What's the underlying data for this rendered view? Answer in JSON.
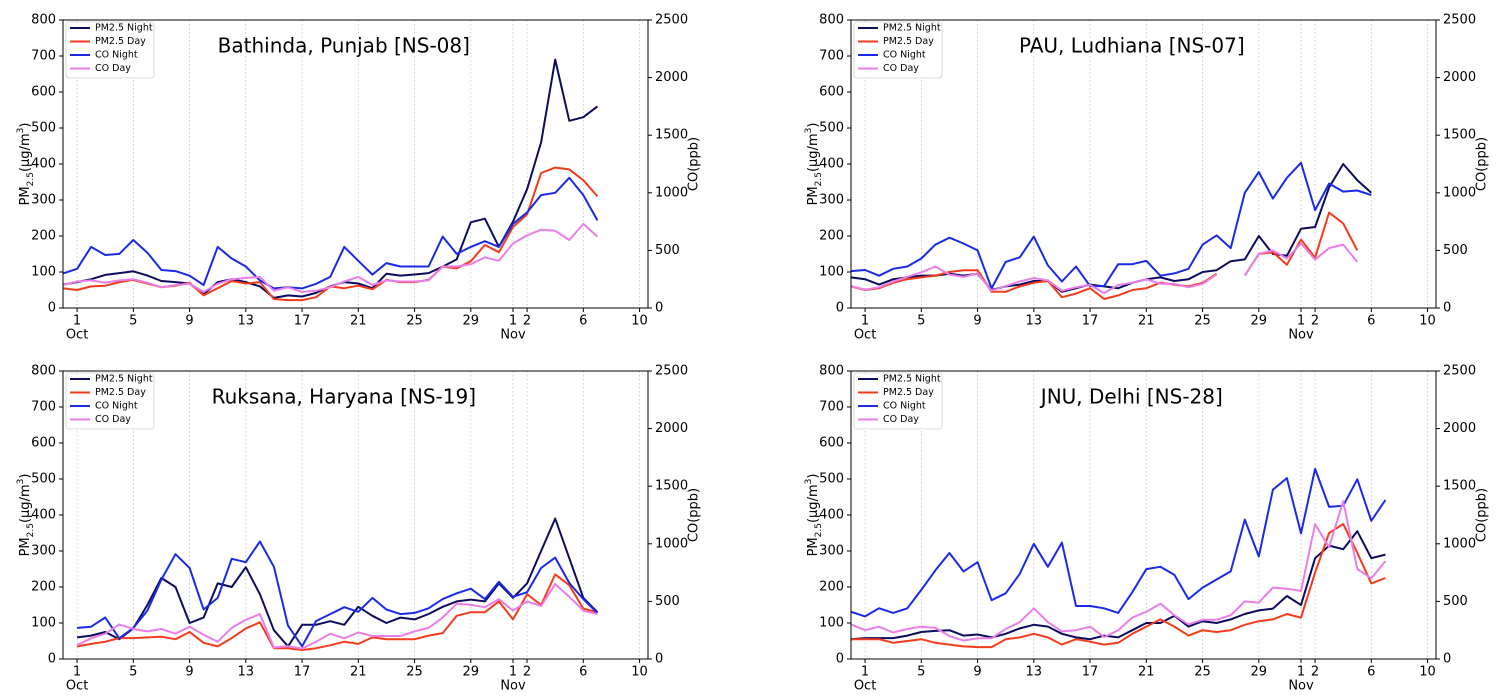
{
  "chart_data": [
    {
      "type": "line",
      "title": "Bathinda, Punjab [NS-08]",
      "ylabel": [
        "PM",
        "2.5",
        "(μg/m",
        "3",
        ")"
      ],
      "y2label": "CO(ppb)",
      "x": [
        0,
        1,
        2,
        3,
        4,
        5,
        6,
        7,
        8,
        9,
        10,
        11,
        12,
        13,
        14,
        15,
        16,
        17,
        18,
        19,
        20,
        21,
        22,
        23,
        24,
        25,
        26,
        27,
        28,
        29,
        30,
        31,
        32,
        33,
        34,
        35,
        36,
        37,
        38
      ],
      "xlim": [
        0,
        41.6
      ],
      "xticks": [
        1,
        5,
        9,
        13,
        17,
        21,
        25,
        29,
        {
          "value": 32,
          "label": "1"
        },
        {
          "value": 33,
          "label": "2"
        },
        {
          "value": 37,
          "label": "6"
        },
        {
          "value": 41,
          "label": "10"
        }
      ],
      "month_labels": [
        {
          "value": 1,
          "label": "Oct"
        },
        {
          "value": 32,
          "label": "Nov"
        }
      ],
      "ylim": [
        0,
        800
      ],
      "yticks": [
        0,
        100,
        200,
        300,
        400,
        500,
        600,
        700,
        800
      ],
      "y2lim": [
        0,
        2500
      ],
      "y2ticks": [
        0,
        500,
        1000,
        1500,
        2000,
        2500
      ],
      "grid": true,
      "legend": "upper left",
      "series": [
        {
          "name": "PM2.5 Night",
          "color": "#0c0c5e",
          "values": [
            65,
            72,
            80,
            92,
            97,
            102,
            90,
            75,
            72,
            68,
            38,
            72,
            80,
            72,
            60,
            28,
            35,
            32,
            42,
            60,
            72,
            68,
            55,
            95,
            90,
            93,
            97,
            115,
            135,
            238,
            248,
            170,
            240,
            330,
            460,
            690,
            520,
            530,
            560
          ]
        },
        {
          "name": "PM2.5 Day",
          "color": "#f23c1c",
          "values": [
            55,
            50,
            60,
            62,
            72,
            78,
            68,
            58,
            62,
            70,
            35,
            55,
            75,
            68,
            72,
            25,
            22,
            22,
            30,
            60,
            55,
            62,
            52,
            78,
            72,
            72,
            78,
            115,
            110,
            130,
            175,
            155,
            225,
            260,
            375,
            390,
            385,
            355,
            310
          ]
        },
        {
          "name": "CO Night",
          "color": "#1a2ae8",
          "axis": "y2",
          "values": [
            300,
            340,
            530,
            460,
            470,
            590,
            480,
            330,
            320,
            280,
            200,
            530,
            430,
            360,
            240,
            170,
            180,
            170,
            210,
            270,
            530,
            410,
            290,
            390,
            360,
            360,
            360,
            620,
            470,
            530,
            580,
            530,
            730,
            830,
            980,
            1000,
            1130,
            980,
            760
          ]
        },
        {
          "name": "CO Day",
          "color": "#ea7ee8",
          "axis": "y2",
          "values": [
            200,
            230,
            240,
            220,
            240,
            250,
            220,
            180,
            200,
            210,
            140,
            210,
            250,
            260,
            270,
            150,
            180,
            140,
            150,
            180,
            230,
            270,
            200,
            240,
            230,
            230,
            240,
            360,
            360,
            380,
            440,
            410,
            560,
            630,
            680,
            670,
            590,
            730,
            620
          ]
        }
      ]
    },
    {
      "type": "line",
      "title": "PAU, Ludhiana [NS-07]",
      "ylabel": [
        "PM",
        "2.5",
        "(μg/m",
        "3",
        ")"
      ],
      "y2label": "CO(ppb)",
      "x": [
        0,
        1,
        2,
        3,
        4,
        5,
        6,
        7,
        8,
        9,
        10,
        11,
        12,
        13,
        14,
        15,
        16,
        17,
        18,
        19,
        20,
        21,
        22,
        23,
        24,
        25,
        26,
        27,
        28,
        29,
        30,
        31,
        32,
        33,
        34,
        35,
        36,
        37
      ],
      "xlim": [
        0,
        41.6
      ],
      "xticks": [
        1,
        5,
        9,
        13,
        17,
        21,
        25,
        29,
        {
          "value": 32,
          "label": "1"
        },
        {
          "value": 33,
          "label": "2"
        },
        {
          "value": 37,
          "label": "6"
        },
        {
          "value": 41,
          "label": "10"
        }
      ],
      "month_labels": [
        {
          "value": 1,
          "label": "Oct"
        },
        {
          "value": 32,
          "label": "Nov"
        }
      ],
      "ylim": [
        0,
        800
      ],
      "yticks": [
        0,
        100,
        200,
        300,
        400,
        500,
        600,
        700,
        800
      ],
      "y2lim": [
        0,
        2500
      ],
      "y2ticks": [
        0,
        500,
        1000,
        1500,
        2000,
        2500
      ],
      "grid": true,
      "legend": "upper left",
      "series": [
        {
          "name": "PM2.5 Night",
          "color": "#0c0c5e",
          "values": [
            85,
            80,
            65,
            80,
            85,
            90,
            90,
            95,
            90,
            95,
            50,
            60,
            65,
            75,
            75,
            45,
            55,
            65,
            60,
            55,
            70,
            80,
            85,
            75,
            80,
            100,
            105,
            130,
            135,
            200,
            150,
            145,
            220,
            225,
            335,
            400,
            355,
            320
          ]
        },
        {
          "name": "PM2.5 Day",
          "color": "#f23c1c",
          "values": [
            60,
            50,
            55,
            70,
            80,
            85,
            90,
            100,
            105,
            105,
            45,
            45,
            60,
            70,
            75,
            30,
            40,
            55,
            25,
            35,
            50,
            55,
            70,
            65,
            60,
            70,
            95,
            null,
            90,
            150,
            155,
            120,
            190,
            140,
            265,
            235,
            160,
            null
          ]
        },
        {
          "name": "CO Night",
          "color": "#1a2ae8",
          "axis": "y2",
          "values": [
            320,
            330,
            280,
            340,
            360,
            430,
            550,
            610,
            560,
            500,
            170,
            400,
            440,
            620,
            370,
            230,
            360,
            190,
            190,
            380,
            380,
            410,
            280,
            300,
            340,
            550,
            630,
            520,
            1000,
            1180,
            950,
            1130,
            1260,
            850,
            1080,
            1010,
            1020,
            980
          ]
        },
        {
          "name": "CO Day",
          "color": "#ea7ee8",
          "axis": "y2",
          "values": [
            190,
            160,
            180,
            230,
            270,
            310,
            360,
            290,
            270,
            300,
            150,
            190,
            230,
            260,
            240,
            150,
            180,
            200,
            130,
            200,
            220,
            250,
            210,
            210,
            180,
            210,
            290,
            null,
            280,
            470,
            500,
            430,
            560,
            420,
            520,
            550,
            400,
            null
          ]
        }
      ]
    },
    {
      "type": "line",
      "title": "Ruksana, Haryana [NS-19]",
      "ylabel": [
        "PM",
        "2.5",
        "(μg/m",
        "3",
        ")"
      ],
      "y2label": "CO(ppb)",
      "x": [
        0,
        1,
        2,
        3,
        4,
        5,
        6,
        7,
        8,
        9,
        10,
        11,
        12,
        13,
        14,
        15,
        16,
        17,
        18,
        19,
        20,
        21,
        22,
        23,
        24,
        25,
        26,
        27,
        28,
        29,
        30,
        31,
        32,
        33,
        34,
        35,
        36,
        37,
        38
      ],
      "xlim": [
        0,
        41.6
      ],
      "xticks": [
        1,
        5,
        9,
        13,
        17,
        21,
        25,
        29,
        {
          "value": 32,
          "label": "1"
        },
        {
          "value": 33,
          "label": "2"
        },
        {
          "value": 37,
          "label": "6"
        },
        {
          "value": 41,
          "label": "10"
        }
      ],
      "month_labels": [
        {
          "value": 1,
          "label": "Oct"
        },
        {
          "value": 32,
          "label": "Nov"
        }
      ],
      "ylim": [
        0,
        800
      ],
      "yticks": [
        0,
        100,
        200,
        300,
        400,
        500,
        600,
        700,
        800
      ],
      "y2lim": [
        0,
        2500
      ],
      "y2ticks": [
        0,
        500,
        1000,
        1500,
        2000,
        2500
      ],
      "grid": true,
      "legend": "upper left",
      "series": [
        {
          "name": "PM2.5 Night",
          "color": "#0c0c5e",
          "values": [
            null,
            60,
            65,
            75,
            55,
            85,
            150,
            225,
            200,
            100,
            115,
            210,
            200,
            255,
            180,
            80,
            35,
            95,
            95,
            105,
            95,
            145,
            120,
            100,
            115,
            110,
            125,
            145,
            160,
            165,
            160,
            210,
            170,
            210,
            300,
            390,
            280,
            170,
            130
          ]
        },
        {
          "name": "PM2.5 Day",
          "color": "#f23c1c",
          "values": [
            null,
            35,
            42,
            48,
            58,
            58,
            60,
            62,
            55,
            75,
            45,
            35,
            58,
            85,
            102,
            30,
            30,
            25,
            30,
            38,
            48,
            42,
            60,
            55,
            55,
            55,
            65,
            72,
            120,
            130,
            130,
            160,
            110,
            180,
            150,
            235,
            205,
            140,
            130
          ]
        },
        {
          "name": "CO Night",
          "color": "#1a2ae8",
          "axis": "y2",
          "values": [
            null,
            270,
            280,
            360,
            180,
            270,
            420,
            690,
            910,
            790,
            430,
            530,
            870,
            840,
            1020,
            800,
            290,
            110,
            330,
            390,
            450,
            410,
            530,
            430,
            390,
            400,
            440,
            520,
            570,
            610,
            520,
            670,
            540,
            580,
            790,
            880,
            660,
            520,
            400
          ]
        },
        {
          "name": "CO Day",
          "color": "#ea7ee8",
          "axis": "y2",
          "values": [
            null,
            120,
            180,
            220,
            300,
            260,
            240,
            260,
            220,
            280,
            210,
            150,
            270,
            340,
            390,
            100,
            110,
            90,
            150,
            220,
            180,
            230,
            200,
            200,
            200,
            240,
            270,
            360,
            480,
            470,
            450,
            520,
            420,
            500,
            460,
            650,
            540,
            420,
            390
          ]
        }
      ]
    },
    {
      "type": "line",
      "title": "JNU, Delhi [NS-28]",
      "ylabel": [
        "PM",
        "2.5",
        "(μg/m",
        "3",
        ")"
      ],
      "y2label": "CO(ppb)",
      "x": [
        0,
        1,
        2,
        3,
        4,
        5,
        6,
        7,
        8,
        9,
        10,
        11,
        12,
        13,
        14,
        15,
        16,
        17,
        18,
        19,
        20,
        21,
        22,
        23,
        24,
        25,
        26,
        27,
        28,
        29,
        30,
        31,
        32,
        33,
        34,
        35,
        36,
        37,
        38
      ],
      "xlim": [
        0,
        41.6
      ],
      "xticks": [
        1,
        5,
        9,
        13,
        17,
        21,
        25,
        29,
        {
          "value": 32,
          "label": "1"
        },
        {
          "value": 33,
          "label": "2"
        },
        {
          "value": 37,
          "label": "6"
        },
        {
          "value": 41,
          "label": "10"
        }
      ],
      "month_labels": [
        {
          "value": 1,
          "label": "Oct"
        },
        {
          "value": 32,
          "label": "Nov"
        }
      ],
      "ylim": [
        0,
        800
      ],
      "yticks": [
        0,
        100,
        200,
        300,
        400,
        500,
        600,
        700,
        800
      ],
      "y2lim": [
        0,
        2500
      ],
      "y2ticks": [
        0,
        500,
        1000,
        1500,
        2000,
        2500
      ],
      "grid": true,
      "legend": "upper left",
      "series": [
        {
          "name": "PM2.5 Night",
          "color": "#0c0c5e",
          "values": [
            55,
            58,
            58,
            58,
            65,
            75,
            78,
            80,
            65,
            68,
            60,
            70,
            85,
            95,
            90,
            70,
            60,
            55,
            65,
            60,
            80,
            100,
            100,
            120,
            90,
            105,
            100,
            110,
            125,
            135,
            140,
            175,
            150,
            280,
            315,
            305,
            355,
            280,
            290
          ]
        },
        {
          "name": "PM2.5 Day",
          "color": "#f23c1c",
          "values": [
            55,
            55,
            55,
            45,
            50,
            55,
            45,
            40,
            35,
            33,
            33,
            55,
            60,
            70,
            60,
            40,
            55,
            48,
            40,
            45,
            70,
            90,
            110,
            90,
            65,
            80,
            75,
            80,
            95,
            105,
            110,
            125,
            115,
            240,
            350,
            375,
            295,
            210,
            225
          ]
        },
        {
          "name": "CO Night",
          "color": "#1a2ae8",
          "axis": "y2",
          "values": [
            410,
            370,
            440,
            400,
            440,
            600,
            770,
            920,
            760,
            840,
            510,
            570,
            740,
            1000,
            800,
            1010,
            460,
            460,
            440,
            400,
            580,
            780,
            800,
            730,
            520,
            620,
            690,
            760,
            1210,
            890,
            1470,
            1570,
            1090,
            1650,
            1320,
            1330,
            1560,
            1200,
            1380
          ]
        },
        {
          "name": "CO Day",
          "color": "#ea7ee8",
          "axis": "y2",
          "values": [
            300,
            250,
            280,
            230,
            260,
            280,
            270,
            200,
            160,
            180,
            180,
            260,
            320,
            440,
            320,
            240,
            250,
            280,
            190,
            250,
            360,
            410,
            480,
            380,
            300,
            340,
            340,
            380,
            500,
            490,
            620,
            610,
            590,
            1170,
            970,
            1370,
            780,
            700,
            850
          ]
        }
      ]
    }
  ]
}
